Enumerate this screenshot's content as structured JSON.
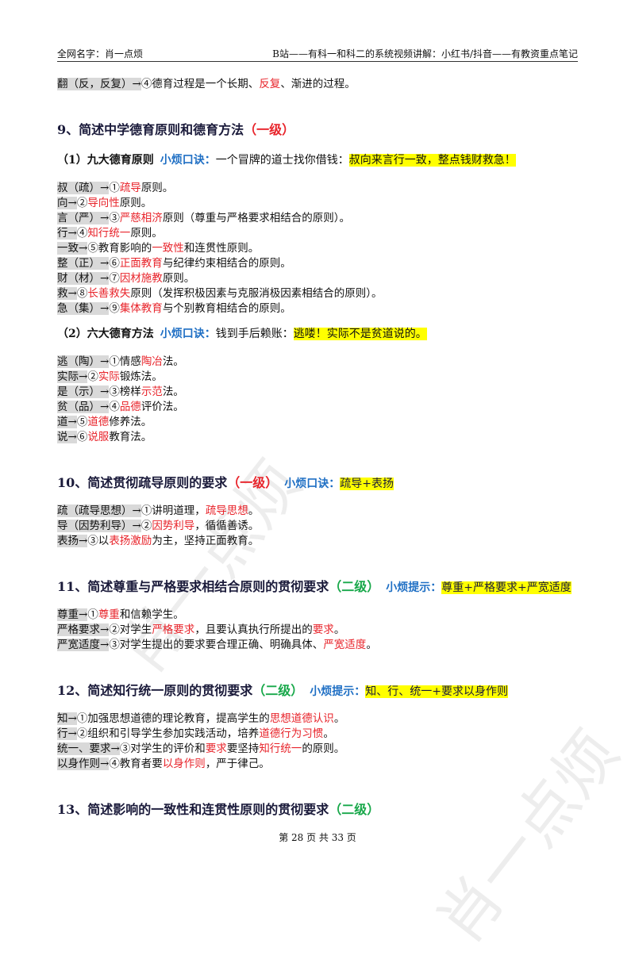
{
  "header": {
    "left": "全网名字：肖一点烦",
    "right": "B站——有科一和科二的系统视频讲解：小红书/抖音——有教资重点笔记"
  },
  "blocks": [
    {
      "kind": "line",
      "runs": [
        {
          "text": "翻（反，反复）→",
          "style": "gray"
        },
        {
          "text": "④德育过程是一个长期、",
          "style": "plain"
        },
        {
          "text": "反复",
          "style": "red"
        },
        {
          "text": "、渐进的过程。",
          "style": "plain"
        }
      ]
    },
    {
      "kind": "heading",
      "runs": [
        {
          "text": "9、简述中学德育原则和德育方法",
          "style": "bold"
        },
        {
          "text": "（一级）",
          "style": "red-bold"
        }
      ]
    },
    {
      "kind": "sub",
      "runs": [
        {
          "text": "（1）九大德育原则",
          "style": "bold"
        },
        {
          "text": "小烦口诀：",
          "style": "blue-bold"
        },
        {
          "text": "一个冒牌的道士找你借钱：",
          "style": "plain"
        },
        {
          "text": "叔向来言行一致，整点钱财救急！",
          "style": "hl"
        }
      ]
    },
    {
      "kind": "line",
      "runs": [
        {
          "text": "叔（疏）→",
          "style": "gray"
        },
        {
          "text": "①",
          "style": "plain"
        },
        {
          "text": "疏导",
          "style": "red"
        },
        {
          "text": "原则。",
          "style": "plain"
        }
      ]
    },
    {
      "kind": "line",
      "runs": [
        {
          "text": "向→",
          "style": "gray"
        },
        {
          "text": "②",
          "style": "plain"
        },
        {
          "text": "导向性",
          "style": "red"
        },
        {
          "text": "原则。",
          "style": "plain"
        }
      ]
    },
    {
      "kind": "line",
      "runs": [
        {
          "text": "言（严）→",
          "style": "gray"
        },
        {
          "text": "③",
          "style": "plain"
        },
        {
          "text": "严慈相济",
          "style": "red"
        },
        {
          "text": "原则（尊重与严格要求相结合的原则）。",
          "style": "plain"
        }
      ]
    },
    {
      "kind": "line",
      "runs": [
        {
          "text": "行→",
          "style": "gray"
        },
        {
          "text": "④",
          "style": "plain"
        },
        {
          "text": "知行统一",
          "style": "red"
        },
        {
          "text": "原则。",
          "style": "plain"
        }
      ]
    },
    {
      "kind": "line",
      "runs": [
        {
          "text": "一致→",
          "style": "gray"
        },
        {
          "text": "⑤教育影响的",
          "style": "plain"
        },
        {
          "text": "一致性",
          "style": "red"
        },
        {
          "text": "和连贯性原则。",
          "style": "plain"
        }
      ]
    },
    {
      "kind": "line",
      "runs": [
        {
          "text": "整（正）→",
          "style": "gray"
        },
        {
          "text": "⑥",
          "style": "plain"
        },
        {
          "text": "正面教育",
          "style": "red"
        },
        {
          "text": "与纪律约束相结合的原则。",
          "style": "plain"
        }
      ]
    },
    {
      "kind": "line",
      "runs": [
        {
          "text": "财（材）→",
          "style": "gray"
        },
        {
          "text": "⑦",
          "style": "plain"
        },
        {
          "text": "因材施教",
          "style": "red"
        },
        {
          "text": "原则。",
          "style": "plain"
        }
      ]
    },
    {
      "kind": "line",
      "runs": [
        {
          "text": "救→",
          "style": "gray"
        },
        {
          "text": "⑧",
          "style": "plain"
        },
        {
          "text": "长善救失",
          "style": "red"
        },
        {
          "text": "原则（发挥积极因素与克服消极因素相结合的原则）。",
          "style": "plain"
        }
      ]
    },
    {
      "kind": "line",
      "runs": [
        {
          "text": "急（集）→",
          "style": "gray"
        },
        {
          "text": "⑨",
          "style": "plain"
        },
        {
          "text": "集体教育",
          "style": "red"
        },
        {
          "text": "与个别教育相结合的原则。",
          "style": "plain"
        }
      ]
    },
    {
      "kind": "sub",
      "runs": [
        {
          "text": "（2）六大德育方法",
          "style": "bold"
        },
        {
          "text": "小烦口诀：",
          "style": "blue-bold"
        },
        {
          "text": "钱到手后赖账：",
          "style": "plain"
        },
        {
          "text": "逃喽！实际不是贫道说的。",
          "style": "hl"
        }
      ]
    },
    {
      "kind": "line",
      "runs": [
        {
          "text": "逃（陶）→",
          "style": "gray"
        },
        {
          "text": "①情感",
          "style": "plain"
        },
        {
          "text": "陶冶",
          "style": "red"
        },
        {
          "text": "法。",
          "style": "plain"
        }
      ]
    },
    {
      "kind": "line",
      "runs": [
        {
          "text": "实际→",
          "style": "gray"
        },
        {
          "text": "②",
          "style": "plain"
        },
        {
          "text": "实际",
          "style": "red"
        },
        {
          "text": "锻炼法。",
          "style": "plain"
        }
      ]
    },
    {
      "kind": "line",
      "runs": [
        {
          "text": "是（示）→",
          "style": "gray"
        },
        {
          "text": "③榜样",
          "style": "plain"
        },
        {
          "text": "示范",
          "style": "red"
        },
        {
          "text": "法。",
          "style": "plain"
        }
      ]
    },
    {
      "kind": "line",
      "runs": [
        {
          "text": "贫（品）→",
          "style": "gray"
        },
        {
          "text": "④",
          "style": "plain"
        },
        {
          "text": "品德",
          "style": "red"
        },
        {
          "text": "评价法。",
          "style": "plain"
        }
      ]
    },
    {
      "kind": "line",
      "runs": [
        {
          "text": "道→",
          "style": "gray"
        },
        {
          "text": "⑤",
          "style": "plain"
        },
        {
          "text": "道德",
          "style": "red"
        },
        {
          "text": "修养法。",
          "style": "plain"
        }
      ]
    },
    {
      "kind": "line",
      "runs": [
        {
          "text": "说→",
          "style": "gray"
        },
        {
          "text": "⑥",
          "style": "plain"
        },
        {
          "text": "说服",
          "style": "red"
        },
        {
          "text": "教育法。",
          "style": "plain"
        }
      ]
    },
    {
      "kind": "heading",
      "runs": [
        {
          "text": "10、简述贯彻疏导原则的要求",
          "style": "bold"
        },
        {
          "text": "（一级）",
          "style": "red-bold"
        },
        {
          "text": "小烦口诀：",
          "style": "blue-bold"
        },
        {
          "text": "疏导+表扬",
          "style": "hl"
        }
      ]
    },
    {
      "kind": "line",
      "runs": [
        {
          "text": "疏（疏导思想）→",
          "style": "gray"
        },
        {
          "text": "①讲明道理，",
          "style": "plain"
        },
        {
          "text": "疏导思想",
          "style": "red"
        },
        {
          "text": "。",
          "style": "plain"
        }
      ]
    },
    {
      "kind": "line",
      "runs": [
        {
          "text": "导（因势利导）→",
          "style": "gray"
        },
        {
          "text": "②",
          "style": "plain"
        },
        {
          "text": "因势利导",
          "style": "red"
        },
        {
          "text": "，循循善诱。",
          "style": "plain"
        }
      ]
    },
    {
      "kind": "line",
      "runs": [
        {
          "text": "表扬→",
          "style": "gray"
        },
        {
          "text": "③以",
          "style": "plain"
        },
        {
          "text": "表扬激励",
          "style": "red"
        },
        {
          "text": "为主，坚持正面教育。",
          "style": "plain"
        }
      ]
    },
    {
      "kind": "heading",
      "runs": [
        {
          "text": "11、简述尊重与严格要求相结合原则的贯彻要求",
          "style": "bold"
        },
        {
          "text": "（二级）",
          "style": "green-bold"
        },
        {
          "text": "小烦提示：",
          "style": "blue-bold"
        },
        {
          "text": "尊重+严格要求+严宽适度",
          "style": "hl"
        }
      ]
    },
    {
      "kind": "line",
      "runs": [
        {
          "text": "尊重→",
          "style": "gray"
        },
        {
          "text": "①",
          "style": "plain"
        },
        {
          "text": "尊重",
          "style": "red"
        },
        {
          "text": "和信赖学生。",
          "style": "plain"
        }
      ]
    },
    {
      "kind": "line",
      "runs": [
        {
          "text": "严格要求→",
          "style": "gray"
        },
        {
          "text": "②对学生",
          "style": "plain"
        },
        {
          "text": "严格要求",
          "style": "red"
        },
        {
          "text": "，且要认真执行所提出的",
          "style": "plain"
        },
        {
          "text": "要求",
          "style": "red"
        },
        {
          "text": "。",
          "style": "plain"
        }
      ]
    },
    {
      "kind": "line",
      "runs": [
        {
          "text": "严宽适度→",
          "style": "gray"
        },
        {
          "text": "③对学生提出的要求要合理正确、明确具体、",
          "style": "plain"
        },
        {
          "text": "严宽适度",
          "style": "red"
        },
        {
          "text": "。",
          "style": "plain"
        }
      ]
    },
    {
      "kind": "heading",
      "runs": [
        {
          "text": "12、简述知行统一原则的贯彻要求",
          "style": "bold"
        },
        {
          "text": "（二级）",
          "style": "green-bold"
        },
        {
          "text": "小烦提示：",
          "style": "blue-bold"
        },
        {
          "text": "知、行、统一+要求以身作则",
          "style": "hl"
        }
      ]
    },
    {
      "kind": "line",
      "runs": [
        {
          "text": "知→",
          "style": "gray"
        },
        {
          "text": "①加强思想道德的理论教育，提高学生的",
          "style": "plain"
        },
        {
          "text": "思想道德认识",
          "style": "red"
        },
        {
          "text": "。",
          "style": "plain"
        }
      ]
    },
    {
      "kind": "line",
      "runs": [
        {
          "text": "行→",
          "style": "gray"
        },
        {
          "text": "②组织和引导学生参加实践活动，培养",
          "style": "plain"
        },
        {
          "text": "道德行为习惯",
          "style": "red"
        },
        {
          "text": "。",
          "style": "plain"
        }
      ]
    },
    {
      "kind": "line",
      "runs": [
        {
          "text": "统一、要求→",
          "style": "gray"
        },
        {
          "text": "③对学生的评价和",
          "style": "plain"
        },
        {
          "text": "要求",
          "style": "red"
        },
        {
          "text": "要坚持",
          "style": "plain"
        },
        {
          "text": "知行统一",
          "style": "red"
        },
        {
          "text": "的原则。",
          "style": "plain"
        }
      ]
    },
    {
      "kind": "line",
      "runs": [
        {
          "text": "以身作则→",
          "style": "gray"
        },
        {
          "text": "④教育者要",
          "style": "plain"
        },
        {
          "text": "以身作则",
          "style": "red"
        },
        {
          "text": "，严于律己。",
          "style": "plain"
        }
      ]
    },
    {
      "kind": "heading",
      "runs": [
        {
          "text": "13、简述影响的一致性和连贯性原则的贯彻要求",
          "style": "bold"
        },
        {
          "text": "（二级）",
          "style": "green-bold"
        }
      ]
    }
  ],
  "footer": "第 28 页 共 33 页",
  "watermark": "肖一点烦"
}
